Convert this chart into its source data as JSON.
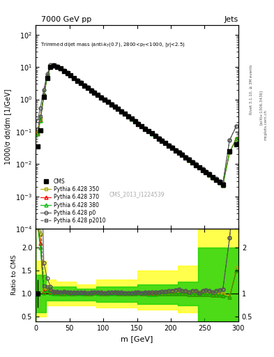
{
  "title_top": "7000 GeV pp",
  "title_right": "Jets",
  "plot_title": "Trimmed dijet mass (anti-k_{T}(0.7), 2800<p_{T}<1000, |y|<2.5)",
  "watermark": "CMS_2013_I1224539",
  "rivet_label": "Rivet 3.1.10, ≥ 3M events",
  "arxiv_label": "[arXiv:1306.3436]",
  "mcplots_label": "mcplots.cern.ch",
  "xlabel": "m [GeV]",
  "ylabel_main": "1000/σ dσ/dm [1/GeV]",
  "ylabel_ratio": "Ratio to CMS",
  "xlim": [
    0,
    300
  ],
  "ylim_main": [
    0.0001,
    200
  ],
  "ylim_ratio": [
    0.4,
    2.4
  ],
  "m_values": [
    3,
    7,
    12,
    17,
    22,
    27,
    32,
    37,
    42,
    47,
    52,
    57,
    62,
    67,
    72,
    77,
    82,
    87,
    92,
    97,
    102,
    107,
    112,
    117,
    122,
    127,
    132,
    137,
    142,
    147,
    152,
    157,
    162,
    167,
    172,
    177,
    182,
    187,
    192,
    197,
    202,
    207,
    212,
    217,
    222,
    227,
    232,
    237,
    242,
    247,
    252,
    257,
    262,
    267,
    272,
    277,
    287,
    297
  ],
  "cms_values": [
    0.035,
    0.11,
    1.2,
    4.5,
    10,
    11,
    10,
    9.0,
    7.5,
    6.5,
    5.5,
    4.5,
    3.8,
    3.2,
    2.7,
    2.3,
    1.9,
    1.6,
    1.35,
    1.15,
    0.98,
    0.83,
    0.7,
    0.59,
    0.5,
    0.42,
    0.355,
    0.3,
    0.25,
    0.21,
    0.175,
    0.148,
    0.124,
    0.104,
    0.088,
    0.074,
    0.062,
    0.052,
    0.044,
    0.037,
    0.031,
    0.026,
    0.022,
    0.019,
    0.016,
    0.0135,
    0.0113,
    0.0094,
    0.0079,
    0.0066,
    0.0056,
    0.0047,
    0.0039,
    0.0033,
    0.0028,
    0.0023,
    0.025,
    0.04
  ],
  "py350_values": [
    0.1,
    0.25,
    1.3,
    5.0,
    10.5,
    11.2,
    10.2,
    9.1,
    7.6,
    6.6,
    5.55,
    4.55,
    3.85,
    3.25,
    2.72,
    2.32,
    1.92,
    1.63,
    1.37,
    1.16,
    0.99,
    0.84,
    0.71,
    0.6,
    0.505,
    0.425,
    0.358,
    0.302,
    0.252,
    0.212,
    0.178,
    0.149,
    0.125,
    0.105,
    0.089,
    0.075,
    0.063,
    0.053,
    0.045,
    0.038,
    0.032,
    0.027,
    0.023,
    0.0195,
    0.0165,
    0.0138,
    0.0116,
    0.0097,
    0.0081,
    0.0068,
    0.0057,
    0.0048,
    0.004,
    0.0033,
    0.0028,
    0.0023,
    0.024,
    0.062
  ],
  "py370_values": [
    0.09,
    0.23,
    1.25,
    4.8,
    10.3,
    11.1,
    10.1,
    9.05,
    7.55,
    6.55,
    5.52,
    4.52,
    3.83,
    3.23,
    2.71,
    2.31,
    1.91,
    1.62,
    1.36,
    1.155,
    0.985,
    0.835,
    0.705,
    0.595,
    0.502,
    0.422,
    0.355,
    0.3,
    0.251,
    0.211,
    0.177,
    0.148,
    0.124,
    0.104,
    0.088,
    0.074,
    0.062,
    0.052,
    0.044,
    0.037,
    0.031,
    0.026,
    0.022,
    0.019,
    0.016,
    0.0133,
    0.0112,
    0.0093,
    0.0078,
    0.0065,
    0.0055,
    0.0046,
    0.0038,
    0.0032,
    0.0027,
    0.0022,
    0.023,
    0.06
  ],
  "py380_values": [
    0.085,
    0.22,
    1.22,
    4.75,
    10.2,
    11.0,
    10.05,
    9.0,
    7.52,
    6.52,
    5.5,
    4.5,
    3.81,
    3.21,
    2.7,
    2.3,
    1.905,
    1.615,
    1.358,
    1.152,
    0.982,
    0.832,
    0.703,
    0.593,
    0.5,
    0.42,
    0.354,
    0.298,
    0.249,
    0.21,
    0.176,
    0.147,
    0.123,
    0.103,
    0.087,
    0.073,
    0.062,
    0.052,
    0.044,
    0.037,
    0.031,
    0.026,
    0.022,
    0.019,
    0.016,
    0.0133,
    0.0112,
    0.0093,
    0.0078,
    0.0065,
    0.0055,
    0.0046,
    0.0038,
    0.0032,
    0.0027,
    0.0022,
    0.023,
    0.06
  ],
  "pyp0_values": [
    0.22,
    0.55,
    2.0,
    6.0,
    11.5,
    11.5,
    10.5,
    9.3,
    7.8,
    6.7,
    5.65,
    4.62,
    3.9,
    3.3,
    2.76,
    2.35,
    1.95,
    1.65,
    1.39,
    1.18,
    1.0,
    0.85,
    0.72,
    0.608,
    0.512,
    0.432,
    0.362,
    0.305,
    0.255,
    0.215,
    0.18,
    0.151,
    0.127,
    0.107,
    0.09,
    0.076,
    0.064,
    0.054,
    0.046,
    0.039,
    0.033,
    0.028,
    0.024,
    0.02,
    0.017,
    0.014,
    0.012,
    0.01,
    0.008,
    0.007,
    0.006,
    0.005,
    0.004,
    0.0035,
    0.003,
    0.0025,
    0.055,
    0.15
  ],
  "pyp2010_values": [
    0.12,
    0.3,
    1.4,
    5.2,
    10.7,
    11.3,
    10.3,
    9.2,
    7.7,
    6.65,
    5.58,
    4.58,
    3.87,
    3.27,
    2.74,
    2.33,
    1.93,
    1.64,
    1.38,
    1.17,
    0.995,
    0.845,
    0.714,
    0.603,
    0.508,
    0.428,
    0.361,
    0.304,
    0.254,
    0.214,
    0.18,
    0.15,
    0.126,
    0.106,
    0.09,
    0.076,
    0.064,
    0.054,
    0.046,
    0.039,
    0.033,
    0.028,
    0.024,
    0.02,
    0.017,
    0.014,
    0.012,
    0.01,
    0.008,
    0.007,
    0.006,
    0.005,
    0.004,
    0.0035,
    0.003,
    0.0025,
    0.055,
    0.15
  ],
  "cms_color": "#000000",
  "py350_color": "#aaaa00",
  "py370_color": "#ff0000",
  "py380_color": "#00bb00",
  "pyp0_color": "#555555",
  "pyp2010_color": "#555555",
  "band_yellow": "#ffff00",
  "band_green": "#00cc00",
  "bg_color": "#ffffff",
  "ratio_bg": "#ffffff"
}
